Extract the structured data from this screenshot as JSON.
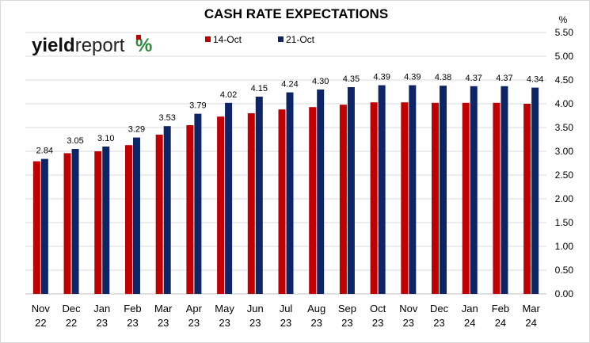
{
  "chart_data": {
    "type": "bar",
    "title": "CASH RATE EXPECTATIONS",
    "ylabel": "%",
    "ylim": [
      0,
      5.5
    ],
    "yticks": [
      "0.00",
      "0.50",
      "1.00",
      "1.50",
      "2.00",
      "2.50",
      "3.00",
      "3.50",
      "4.00",
      "4.50",
      "5.00",
      "5.50"
    ],
    "grid": true,
    "y_axis_side": "right",
    "legend_position": "top-left",
    "categories": [
      [
        "Nov",
        "22"
      ],
      [
        "Dec",
        "22"
      ],
      [
        "Jan",
        "23"
      ],
      [
        "Feb",
        "23"
      ],
      [
        "Mar",
        "23"
      ],
      [
        "Apr",
        "23"
      ],
      [
        "May",
        "23"
      ],
      [
        "Jun",
        "23"
      ],
      [
        "Jul",
        "23"
      ],
      [
        "Aug",
        "23"
      ],
      [
        "Sep",
        "23"
      ],
      [
        "Oct",
        "23"
      ],
      [
        "Nov",
        "23"
      ],
      [
        "Dec",
        "23"
      ],
      [
        "Jan",
        "24"
      ],
      [
        "Feb",
        "24"
      ],
      [
        "Mar",
        "24"
      ]
    ],
    "series": [
      {
        "name": "14-Oct",
        "color": "#c00000",
        "values": [
          2.79,
          2.96,
          3.0,
          3.13,
          3.35,
          3.55,
          3.73,
          3.8,
          3.88,
          3.93,
          3.98,
          4.03,
          4.03,
          4.02,
          4.02,
          4.02,
          4.0
        ],
        "labels": []
      },
      {
        "name": "21-Oct",
        "color": "#0d2466",
        "values": [
          2.84,
          3.05,
          3.1,
          3.29,
          3.53,
          3.79,
          4.02,
          4.15,
          4.24,
          4.3,
          4.35,
          4.39,
          4.39,
          4.38,
          4.37,
          4.37,
          4.34
        ],
        "labels": [
          "2.84",
          "3.05",
          "3.10",
          "3.29",
          "3.53",
          "3.79",
          "4.02",
          "4.15",
          "4.24",
          "4.30",
          "4.35",
          "4.39",
          "4.39",
          "4.38",
          "4.37",
          "4.37",
          "4.34"
        ]
      }
    ]
  },
  "logo": {
    "part1": "yield",
    "part2": "report",
    "symbol": "%"
  },
  "colors": {
    "grid": "#d9d9d9",
    "frame": "#d9d9d9",
    "logo_green": "#2e8b3e",
    "logo_red": "#c00000"
  }
}
